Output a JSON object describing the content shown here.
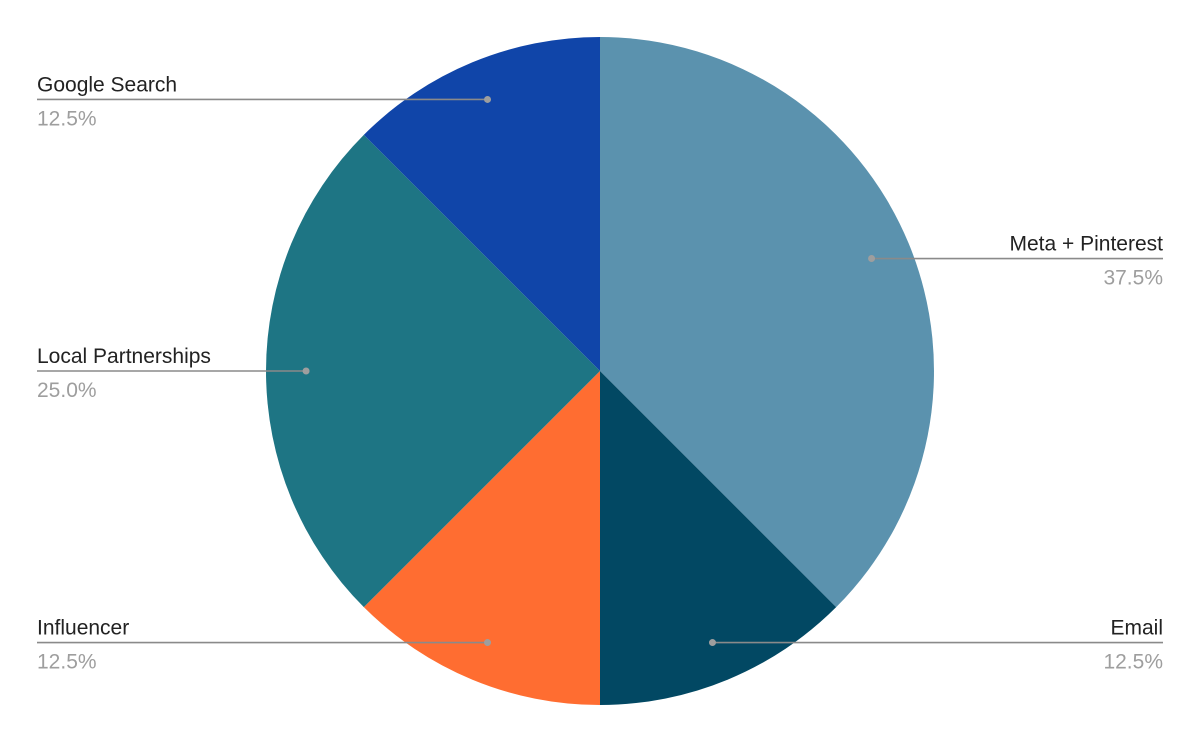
{
  "chart_data": {
    "type": "pie",
    "title": "",
    "start_angle_deg": 0,
    "direction": "clockwise",
    "slices": [
      {
        "label": "Meta + Pinterest",
        "value": 37.5,
        "display": "37.5%",
        "color": "#5b92ae"
      },
      {
        "label": "Email",
        "value": 12.5,
        "display": "12.5%",
        "color": "#024863"
      },
      {
        "label": "Influencer",
        "value": 12.5,
        "display": "12.5%",
        "color": "#ff6d31"
      },
      {
        "label": "Local Partnerships",
        "value": 25.0,
        "display": "25.0%",
        "color": "#1e7584"
      },
      {
        "label": "Google Search",
        "value": 12.5,
        "display": "12.5%",
        "color": "#1045a9"
      }
    ]
  }
}
